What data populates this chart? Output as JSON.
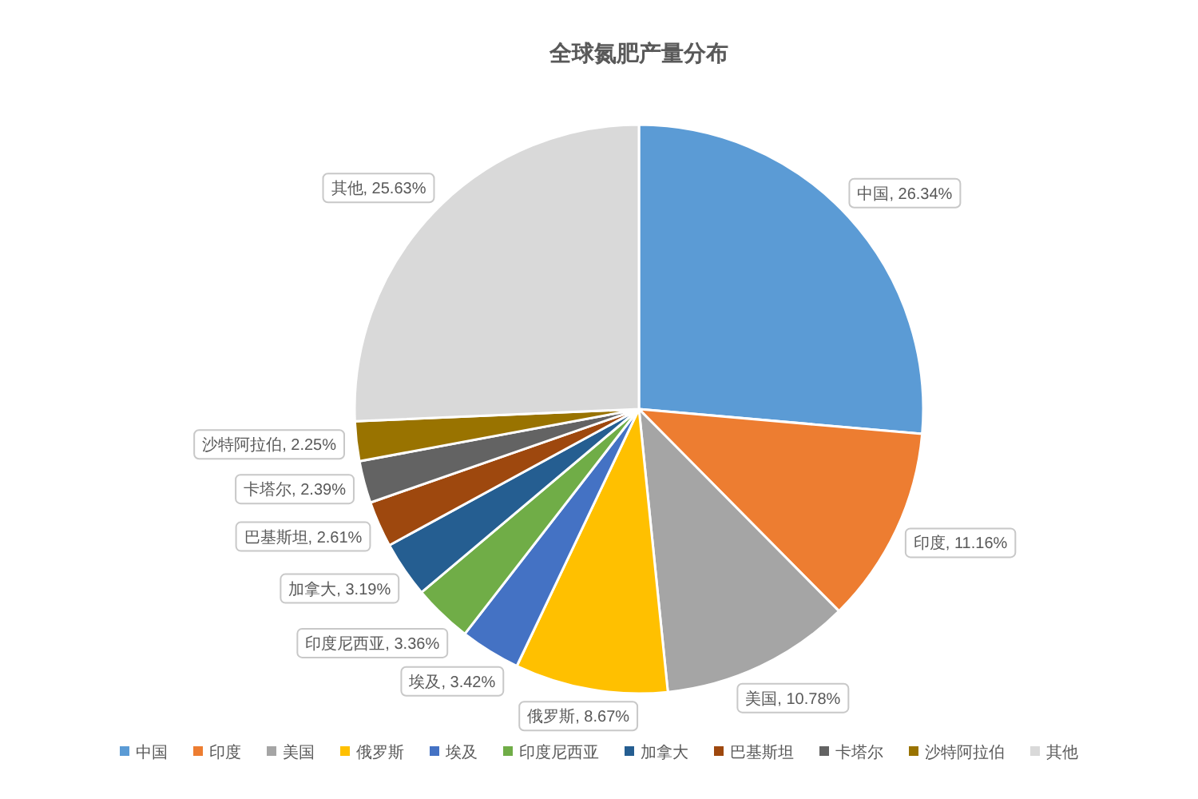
{
  "chart_data": {
    "type": "pie",
    "title": "全球氮肥产量分布",
    "categories": [
      "中国",
      "印度",
      "美国",
      "俄罗斯",
      "埃及",
      "印度尼西亚",
      "加拿大",
      "巴基斯坦",
      "卡塔尔",
      "沙特阿拉伯",
      "其他"
    ],
    "values": [
      26.34,
      11.16,
      10.78,
      8.67,
      3.42,
      3.36,
      3.19,
      2.61,
      2.39,
      2.25,
      25.63
    ],
    "colors": [
      "#5b9bd5",
      "#ed7d31",
      "#a5a5a5",
      "#ffc000",
      "#4472c4",
      "#70ad47",
      "#255e91",
      "#9e480e",
      "#636363",
      "#997300",
      "#d9d9d9"
    ],
    "value_labels": [
      "中国, 26.34%",
      "印度, 11.16%",
      "美国, 10.78%",
      "俄罗斯, 8.67%",
      "埃及, 3.42%",
      "印度尼西亚, 3.36%",
      "加拿大, 3.19%",
      "巴基斯坦, 2.61%",
      "卡塔尔, 2.39%",
      "沙特阿拉伯, 2.25%",
      "其他, 25.63%"
    ],
    "legend": "bottom"
  }
}
